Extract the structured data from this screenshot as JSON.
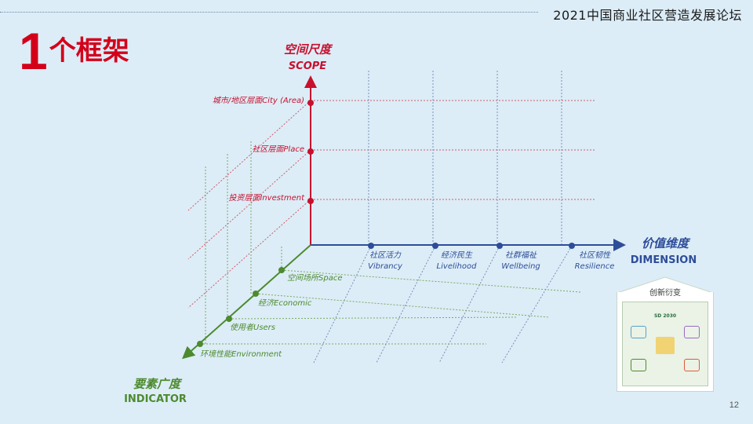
{
  "header": {
    "forum_title": "2021中国商业社区营造发展论坛"
  },
  "slide": {
    "number_text": "1",
    "title_text": "个框架",
    "page_number": "12"
  },
  "axes": {
    "scope": {
      "label_cn": "空间尺度",
      "label_en": "SCOPE",
      "levels": [
        "城市/地区层面City (Area)",
        "社区层面Place",
        "投资层面Investment"
      ]
    },
    "dimension": {
      "label_cn": "价值维度",
      "label_en": "DIMENSION",
      "items": [
        {
          "cn": "社区活力",
          "en": "Vibrancy"
        },
        {
          "cn": "经济民生",
          "en": "Livelihood"
        },
        {
          "cn": "社群福祉",
          "en": "Wellbeing"
        },
        {
          "cn": "社区韧性",
          "en": "Resilience"
        }
      ]
    },
    "indicator": {
      "label_cn": "要素广度",
      "label_en": "INDICATOR",
      "items": [
        "空间场所Space",
        "经济Economic",
        "使用者Users",
        "环境性能Environment"
      ]
    }
  },
  "card": {
    "title": "创新衍变",
    "inner_title": "SD 2030"
  },
  "colors": {
    "scope": "#c8102e",
    "dimension": "#2e4d99",
    "indicator": "#4d8a2e"
  }
}
